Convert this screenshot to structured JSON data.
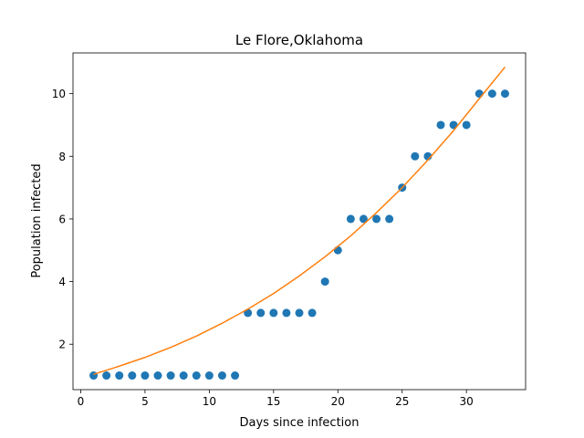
{
  "chart_data": {
    "type": "scatter",
    "title": "Le Flore,Oklahoma",
    "xlabel": "Days since infection",
    "ylabel": "Population infected",
    "xlim": [
      -0.6,
      34.6
    ],
    "ylim": [
      0.55,
      11.3
    ],
    "xticks": [
      0,
      5,
      10,
      15,
      20,
      25,
      30
    ],
    "yticks": [
      2,
      4,
      6,
      8,
      10
    ],
    "grid": false,
    "legend": "none",
    "series": [
      {
        "kind": "points",
        "color": "#1f77b4",
        "x": [
          1,
          2,
          3,
          4,
          5,
          6,
          7,
          8,
          9,
          10,
          11,
          12,
          13,
          14,
          15,
          16,
          17,
          18,
          19,
          20,
          21,
          22,
          23,
          24,
          25,
          26,
          27,
          28,
          29,
          30,
          31,
          32,
          33
        ],
        "y": [
          1,
          1,
          1,
          1,
          1,
          1,
          1,
          1,
          1,
          1,
          1,
          1,
          3,
          3,
          3,
          3,
          3,
          3,
          4,
          5,
          6,
          6,
          6,
          6,
          7,
          8,
          8,
          9,
          9,
          9,
          10,
          10,
          10
        ]
      },
      {
        "kind": "fit-line",
        "color": "#ff7f0e",
        "x": [
          1,
          3,
          5,
          7,
          9,
          11,
          13,
          15,
          17,
          19,
          21,
          23,
          25,
          27,
          29,
          31,
          33
        ],
        "y": [
          1.04,
          1.3,
          1.58,
          1.9,
          2.26,
          2.67,
          3.12,
          3.62,
          4.18,
          4.79,
          5.46,
          6.2,
          7.0,
          7.88,
          8.82,
          9.84,
          10.85
        ]
      }
    ]
  }
}
